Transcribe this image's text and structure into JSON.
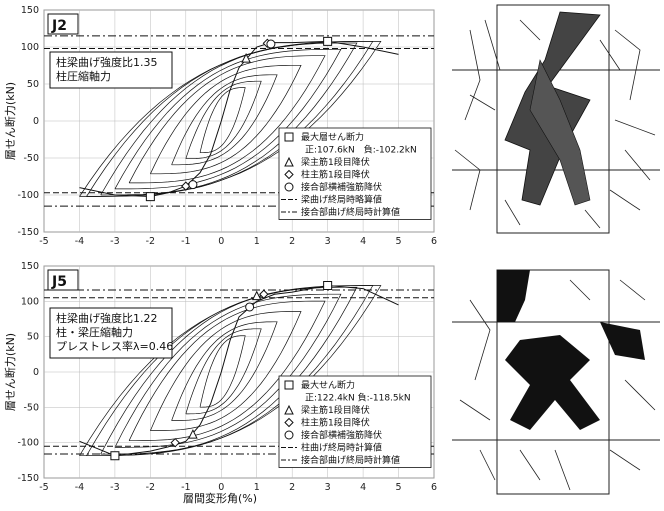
{
  "xlabel": "層間変形角(%)",
  "chart_data": [
    {
      "type": "line",
      "id": "J2",
      "title": "J2",
      "ylabel": "層せん断力(kN)",
      "xlim": [
        -5,
        6
      ],
      "ylim": [
        -150,
        150
      ],
      "x_ticks": [
        "-5",
        "-4",
        "-3",
        "-2",
        "-1",
        "0",
        "1",
        "2",
        "3",
        "4",
        "5",
        "6"
      ],
      "y_ticks": [
        "150",
        "100",
        "50",
        "0",
        "-50",
        "-100",
        "-150"
      ],
      "grid": true,
      "info_lines": [
        "柱梁曲げ強度比1.35",
        "柱圧縮軸力"
      ],
      "legend": [
        {
          "symbol": "square",
          "label": "最大層せん断力"
        },
        {
          "symbol": "none",
          "label": "正:107.6kN　負:-102.2kN"
        },
        {
          "symbol": "triangle",
          "label": "梁主筋1段目降伏"
        },
        {
          "symbol": "diamond",
          "label": "柱主筋1段目降伏"
        },
        {
          "symbol": "circle",
          "label": "接合部横補強筋降伏"
        },
        {
          "symbol": "dash",
          "label": "梁曲げ終局時略算値"
        },
        {
          "symbol": "dashdot",
          "label": "接合部曲げ終局時計算値"
        }
      ],
      "ref_lines": {
        "dash": [
          98,
          -97
        ],
        "dashdot": [
          115,
          -115
        ]
      },
      "envelope": {
        "x": [
          -4.0,
          -3.0,
          -2.0,
          -1.5,
          -1.0,
          -0.6,
          -0.3,
          0.0,
          0.25,
          0.5,
          1.0,
          1.4,
          2.0,
          3.0,
          4.0,
          5.0
        ],
        "y": [
          -90,
          -100,
          -102,
          -97,
          -88,
          -70,
          -45,
          0,
          42,
          72,
          100,
          106,
          106,
          107.6,
          100,
          90
        ]
      },
      "markers": [
        {
          "symbol": "square",
          "x": 3.0,
          "y": 107.6
        },
        {
          "symbol": "square",
          "x": -2.0,
          "y": -102.2
        },
        {
          "symbol": "triangle",
          "x": 0.7,
          "y": 85
        },
        {
          "symbol": "diamond",
          "x": 1.3,
          "y": 105
        },
        {
          "symbol": "circle",
          "x": 1.4,
          "y": 104
        },
        {
          "symbol": "diamond",
          "x": -1.0,
          "y": -88
        },
        {
          "symbol": "circle",
          "x": -0.8,
          "y": -86
        }
      ]
    },
    {
      "type": "line",
      "id": "J5",
      "title": "J5",
      "ylabel": "層せん断力(kN)",
      "xlim": [
        -5,
        6
      ],
      "ylim": [
        -150,
        150
      ],
      "x_ticks": [
        "-5",
        "-4",
        "-3",
        "-2",
        "-1",
        "0",
        "1",
        "2",
        "3",
        "4",
        "5",
        "6"
      ],
      "y_ticks": [
        "150",
        "100",
        "50",
        "0",
        "-50",
        "-100",
        "-150"
      ],
      "grid": true,
      "info_lines": [
        "柱梁曲げ強度比1.22",
        "柱・梁圧縮軸力",
        "プレストレス率λ=0.46"
      ],
      "legend": [
        {
          "symbol": "square",
          "label": "最大せん断力"
        },
        {
          "symbol": "none",
          "label": "正:122.4kN 負:-118.5kN"
        },
        {
          "symbol": "triangle",
          "label": "梁主筋1段目降伏"
        },
        {
          "symbol": "diamond",
          "label": "柱主筋1段目降伏"
        },
        {
          "symbol": "circle",
          "label": "接合部横補強筋降伏"
        },
        {
          "symbol": "dash",
          "label": "柱曲げ終局時計算値"
        },
        {
          "symbol": "dashdot",
          "label": "接合部曲げ終局時計算値"
        }
      ],
      "ref_lines": {
        "dash": [
          105,
          -105
        ],
        "dashdot": [
          116,
          -116
        ]
      },
      "envelope": {
        "x": [
          -4.0,
          -3.0,
          -2.0,
          -1.5,
          -1.0,
          -0.6,
          -0.3,
          0.0,
          0.25,
          0.5,
          1.0,
          1.5,
          2.0,
          3.0,
          4.0,
          5.0
        ],
        "y": [
          -98,
          -118.5,
          -112,
          -106,
          -98,
          -75,
          -45,
          0,
          45,
          78,
          100,
          110,
          113,
          122.4,
          118,
          95
        ]
      },
      "markers": [
        {
          "symbol": "square",
          "x": 3.0,
          "y": 122.4
        },
        {
          "symbol": "square",
          "x": -3.0,
          "y": -118.5
        },
        {
          "symbol": "triangle",
          "x": 1.0,
          "y": 108
        },
        {
          "symbol": "diamond",
          "x": 1.2,
          "y": 110
        },
        {
          "symbol": "circle",
          "x": 0.8,
          "y": 92
        },
        {
          "symbol": "triangle",
          "x": -0.8,
          "y": -88
        },
        {
          "symbol": "diamond",
          "x": -1.3,
          "y": -100
        }
      ]
    }
  ]
}
